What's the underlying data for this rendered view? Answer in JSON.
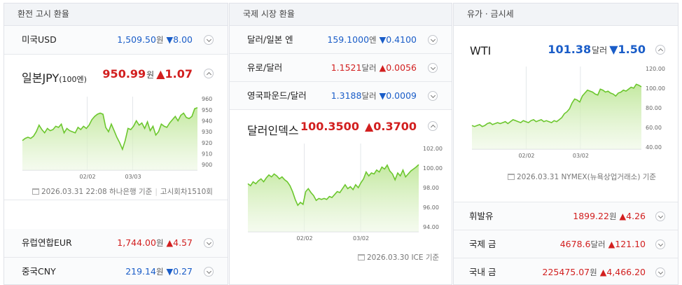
{
  "sections": {
    "exchange": "환전 고시 환율",
    "intl": "국제 시장 환율",
    "oil": "유가 · 금시세"
  },
  "col1": {
    "usd": {
      "name": "미국USD",
      "value": "1,509.50",
      "unit": "원",
      "change": "▼8.00",
      "dir": "down"
    },
    "jpy": {
      "name": "일본JPY",
      "sub": "(100엔)",
      "value": "950.99",
      "unit": "원",
      "change": "▲1.07",
      "dir": "up",
      "footer_date": "2026.03.31 22:08 하나은행 기준",
      "footer_extra": "고시회차1510회"
    },
    "eur": {
      "name": "유럽연합EUR",
      "value": "1,744.00",
      "unit": "원",
      "change": "▲4.57",
      "dir": "up"
    },
    "cny": {
      "name": "중국CNY",
      "value": "219.14",
      "unit": "원",
      "change": "▼0.27",
      "dir": "down"
    }
  },
  "col2": {
    "jpy": {
      "name": "달러/일본 엔",
      "value": "159.1000",
      "unit": "엔",
      "change": "▼0.4100",
      "dir": "down"
    },
    "eur": {
      "name": "유로/달러",
      "value": "1.1521",
      "unit": "달러",
      "change": "▲0.0056",
      "dir": "up"
    },
    "gbp": {
      "name": "영국파운드/달러",
      "value": "1.3188",
      "unit": "달러",
      "change": "▼0.0009",
      "dir": "down"
    },
    "dxy": {
      "name": "달러인덱스",
      "value": "100.3500",
      "unit": "",
      "change": "▲0.3700",
      "dir": "up",
      "footer_date": "2026.03.30 ICE 기준"
    }
  },
  "col3": {
    "wti": {
      "name": "WTI",
      "value": "101.38",
      "unit": "달러",
      "change": "▼1.50",
      "dir": "down",
      "footer_date": "2026.03.31 NYMEX(뉴욕상업거래소) 기준"
    },
    "gasoline": {
      "name": "휘발유",
      "value": "1899.22",
      "unit": "원",
      "change": "▲4.26",
      "dir": "up"
    },
    "intl_gold": {
      "name": "국제 금",
      "value": "4678.6",
      "unit": "달러",
      "change": "▲121.10",
      "dir": "up"
    },
    "dom_gold": {
      "name": "국내 금",
      "value": "225475.07",
      "unit": "원",
      "change": "▲4,466.20",
      "dir": "up"
    }
  },
  "chart_data": [
    {
      "type": "area",
      "ylim": [
        895,
        962
      ],
      "yticks": [
        "960",
        "950",
        "940",
        "930",
        "920",
        "910",
        "900"
      ],
      "xticks": [
        "02/02",
        "03/03"
      ],
      "values": [
        922,
        924,
        925,
        924,
        926,
        930,
        936,
        932,
        929,
        933,
        931,
        932,
        935,
        934,
        937,
        929,
        933,
        931,
        930,
        929,
        934,
        932,
        935,
        933,
        936,
        941,
        944,
        946,
        947,
        946,
        934,
        930,
        937,
        931,
        925,
        920,
        914,
        922,
        933,
        932,
        935,
        940,
        936,
        938,
        933,
        939,
        931,
        935,
        927,
        930,
        937,
        935,
        934,
        938,
        941,
        944,
        940,
        945,
        947,
        943,
        942,
        944,
        951,
        952
      ],
      "color": "#6cc72e"
    },
    {
      "type": "area",
      "ylim": [
        93.5,
        102.5
      ],
      "yticks": [
        "102.00",
        "100.00",
        "98.00",
        "96.00",
        "94.00"
      ],
      "xticks": [
        "02/02",
        "03/02"
      ],
      "values": [
        98.4,
        98.2,
        98.6,
        98.4,
        98.7,
        98.9,
        98.6,
        99.0,
        99.3,
        99.1,
        99.4,
        99.2,
        98.9,
        99.1,
        98.8,
        98.6,
        98.2,
        97.6,
        96.8,
        96.2,
        96.5,
        96.3,
        97.6,
        97.9,
        97.5,
        97.2,
        96.7,
        96.9,
        96.8,
        96.9,
        96.8,
        97.1,
        97.0,
        97.3,
        97.6,
        97.5,
        97.9,
        98.3,
        97.9,
        98.1,
        97.8,
        98.3,
        98.0,
        98.5,
        98.9,
        99.6,
        99.2,
        99.5,
        99.4,
        99.8,
        99.6,
        100.1,
        99.9,
        100.3,
        99.7,
        99.4,
        98.8,
        99.5,
        99.2,
        99.8,
        99.1,
        99.4,
        99.7,
        99.9,
        100.1,
        100.35
      ],
      "color": "#6cc72e"
    },
    {
      "type": "area",
      "ylim": [
        38,
        122
      ],
      "yticks": [
        "120.00",
        "100.00",
        "80.00",
        "60.00",
        "40.00"
      ],
      "xticks": [
        "02/02",
        "03/02"
      ],
      "values": [
        62,
        61,
        62,
        63,
        61,
        62,
        64,
        65,
        63,
        64,
        65,
        64,
        65,
        66,
        64,
        66,
        68,
        67,
        66,
        65,
        67,
        66,
        65,
        67,
        68,
        66,
        67,
        68,
        66,
        67,
        66,
        65,
        67,
        66,
        68,
        70,
        74,
        76,
        79,
        85,
        89,
        88,
        86,
        92,
        95,
        98,
        97,
        96,
        94,
        93,
        99,
        98,
        96,
        97,
        95,
        94,
        92,
        95,
        96,
        98,
        97,
        99,
        101,
        100,
        104,
        103,
        101.4
      ],
      "color": "#6cc72e"
    }
  ]
}
